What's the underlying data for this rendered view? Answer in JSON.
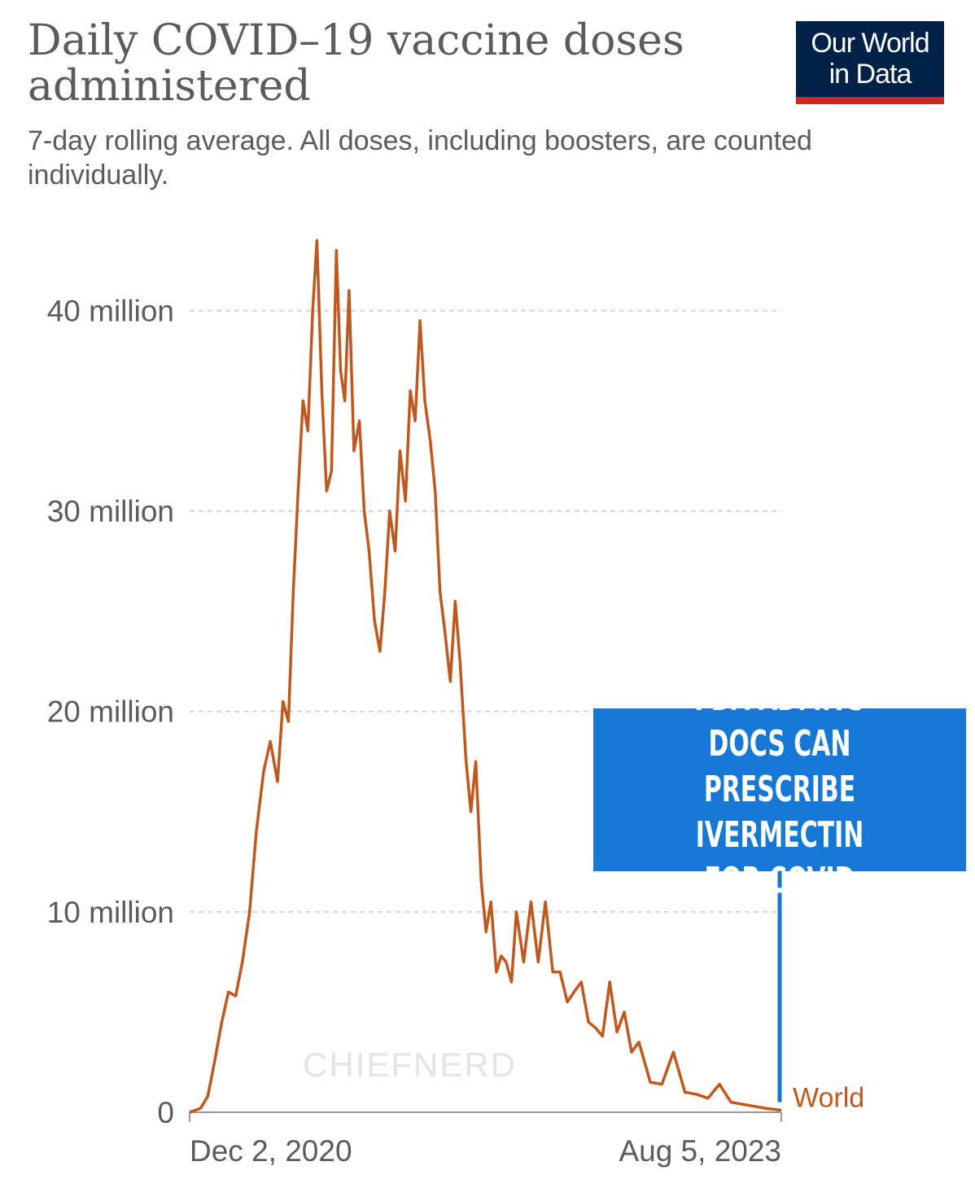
{
  "header": {
    "title": "Daily COVID–19 vaccine doses administered",
    "subtitle": "7-day rolling average. All doses, including boosters, are counted individually.",
    "logo_line1": "Our World",
    "logo_line2": "in Data"
  },
  "watermark": "CHIEFNERD",
  "overlay": {
    "text": "FDA ADMITS DOCS CAN\nPRESCRIBE IVERMECTIN\nFOR COVID",
    "color": "#1578d4"
  },
  "colors": {
    "series": "#c0571d",
    "grid": "#d4d4d4",
    "axis": "#999999",
    "text": "#5b5b5b"
  },
  "chart_data": {
    "type": "line",
    "title": "Daily COVID–19 vaccine doses administered",
    "subtitle": "7-day rolling average. All doses, including boosters, are counted individually.",
    "xlabel": "",
    "ylabel": "",
    "x_tick_labels": [
      "Dec 2, 2020",
      "Aug 5, 2023"
    ],
    "y_ticks": [
      0,
      10000000,
      20000000,
      30000000,
      40000000
    ],
    "y_tick_labels": [
      "0",
      "10 million",
      "20 million",
      "30 million",
      "40 million"
    ],
    "ylim": [
      0,
      44000000
    ],
    "grid": "horizontal dashed",
    "series": [
      {
        "name": "World",
        "x": [
          "2020-12-02",
          "2020-12-20",
          "2021-01-01",
          "2021-01-12",
          "2021-01-24",
          "2021-02-04",
          "2021-02-16",
          "2021-02-27",
          "2021-03-11",
          "2021-03-22",
          "2021-04-03",
          "2021-04-14",
          "2021-04-26",
          "2021-05-05",
          "2021-05-14",
          "2021-05-22",
          "2021-05-30",
          "2021-06-07",
          "2021-06-15",
          "2021-06-23",
          "2021-06-30",
          "2021-07-08",
          "2021-07-16",
          "2021-07-24",
          "2021-08-01",
          "2021-08-08",
          "2021-08-15",
          "2021-08-22",
          "2021-08-30",
          "2021-09-08",
          "2021-09-16",
          "2021-09-24",
          "2021-10-03",
          "2021-10-12",
          "2021-10-20",
          "2021-10-28",
          "2021-11-06",
          "2021-11-14",
          "2021-11-23",
          "2021-12-01",
          "2021-12-09",
          "2021-12-17",
          "2021-12-25",
          "2022-01-03",
          "2022-01-11",
          "2022-01-19",
          "2022-01-27",
          "2022-02-05",
          "2022-02-13",
          "2022-02-21",
          "2022-03-03",
          "2022-03-11",
          "2022-03-19",
          "2022-03-28",
          "2022-04-05",
          "2022-04-13",
          "2022-04-22",
          "2022-04-30",
          "2022-05-08",
          "2022-05-17",
          "2022-05-25",
          "2022-06-06",
          "2022-06-18",
          "2022-06-30",
          "2022-07-12",
          "2022-07-24",
          "2022-08-05",
          "2022-08-17",
          "2022-08-28",
          "2022-09-09",
          "2022-09-21",
          "2022-10-03",
          "2022-10-14",
          "2022-10-26",
          "2022-11-07",
          "2022-11-19",
          "2022-12-01",
          "2022-12-13",
          "2023-01-01",
          "2023-01-20",
          "2023-02-08",
          "2023-02-27",
          "2023-03-18",
          "2023-04-06",
          "2023-04-25",
          "2023-05-14",
          "2023-06-02",
          "2023-06-21",
          "2023-07-10",
          "2023-08-05"
        ],
        "values": [
          0,
          200000,
          800000,
          2500000,
          4500000,
          6000000,
          5800000,
          7500000,
          10000000,
          14000000,
          17000000,
          18500000,
          16500000,
          20500000,
          19500000,
          26000000,
          31000000,
          35500000,
          34000000,
          40000000,
          43500000,
          36000000,
          31000000,
          32000000,
          43000000,
          37000000,
          35500000,
          41000000,
          33000000,
          34500000,
          30000000,
          28000000,
          24500000,
          23000000,
          26000000,
          30000000,
          28000000,
          33000000,
          30500000,
          36000000,
          34500000,
          39500000,
          35500000,
          33500000,
          31000000,
          26000000,
          24000000,
          21500000,
          25500000,
          22500000,
          17500000,
          15000000,
          17500000,
          11500000,
          9000000,
          10500000,
          7000000,
          7800000,
          7500000,
          6500000,
          10000000,
          7500000,
          10500000,
          7500000,
          10500000,
          7000000,
          7000000,
          5500000,
          6000000,
          6500000,
          4500000,
          4200000,
          3800000,
          6500000,
          4000000,
          5000000,
          3000000,
          3500000,
          1500000,
          1400000,
          3000000,
          1000000,
          900000,
          700000,
          1400000,
          500000,
          400000,
          300000,
          200000,
          100000
        ]
      }
    ]
  }
}
